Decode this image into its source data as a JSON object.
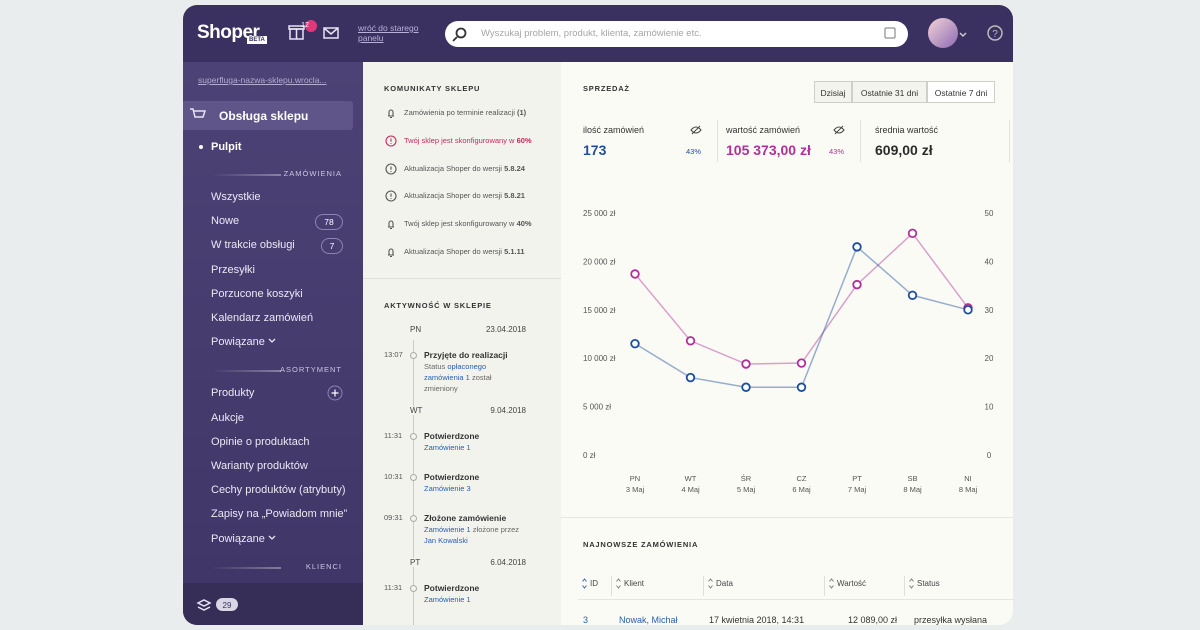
{
  "topbar": {
    "logo": "Shoper",
    "beta": "BETA",
    "gift_badge": 12,
    "old_panel_link": "wróć do starego panelu",
    "search_placeholder": "Wyszukaj problem, produkt, klienta, zamówienie etc."
  },
  "sidebar": {
    "shop_link": "superfluga-nazwa-sklepu.wrocla...",
    "section": "Obsługa sklepu",
    "active": "Pulpit",
    "groups": [
      {
        "title": "ZAMÓWIENIA",
        "items": [
          {
            "label": "Wszystkie"
          },
          {
            "label": "Nowe",
            "badge": 78
          },
          {
            "label": "W trakcie obsługi",
            "badge": 7
          },
          {
            "label": "Przesyłki"
          },
          {
            "label": "Porzucone koszyki"
          },
          {
            "label": "Kalendarz zamówień"
          },
          {
            "label": "Powiązane",
            "expandable": true
          }
        ]
      },
      {
        "title": "ASORTYMENT",
        "items": [
          {
            "label": "Produkty",
            "add_button": true
          },
          {
            "label": "Aukcje"
          },
          {
            "label": "Opinie o produktach"
          },
          {
            "label": "Warianty produktów"
          },
          {
            "label": "Cechy produktów (atrybuty)"
          },
          {
            "label": "Zapisy na „Powiadom mnie”"
          },
          {
            "label": "Powiązane",
            "expandable": true
          }
        ]
      },
      {
        "title": "KLIENCI",
        "items": []
      }
    ],
    "footer_count": 29
  },
  "notices": {
    "title": "KOMUNIKATY SKLEPU",
    "items": [
      {
        "icon": "bell",
        "text": "Zamówienia po terminie realizacji ",
        "bold": "(1)"
      },
      {
        "icon": "alert",
        "text": "Twój sklep jest skonfigurowany w ",
        "bold": "60%"
      },
      {
        "icon": "info",
        "text": "Aktualizacja Shoper do wersji ",
        "bold": "5.8.24"
      },
      {
        "icon": "info",
        "text": "Aktualizacja Shoper do wersji ",
        "bold": "5.8.21"
      },
      {
        "icon": "bell",
        "text": "Twój sklep jest skonfigurowany w ",
        "bold": "40%"
      },
      {
        "icon": "bell",
        "text": "Aktualizacja Shoper do wersji ",
        "bold": "5.1.11"
      }
    ]
  },
  "activity": {
    "title": "AKTYWNOŚĆ W SKLEPIE",
    "days": [
      {
        "day": "PN",
        "date": "23.04.2018",
        "events": [
          {
            "time": "13:07",
            "title": "Przyjęte do realizacji",
            "details": [
              {
                "text": "Status "
              },
              {
                "link": "opłaconego zamówienia 1"
              },
              {
                "text": " został zmieniony"
              }
            ]
          }
        ]
      },
      {
        "day": "WT",
        "date": "9.04.2018",
        "events": [
          {
            "time": "11:31",
            "title": "Potwierdzone",
            "details": [
              {
                "link": "Zamówienie 1"
              }
            ]
          },
          {
            "time": "10:31",
            "title": "Potwierdzone",
            "details": [
              {
                "link": "Zamówienie 3"
              }
            ]
          },
          {
            "time": "09:31",
            "title": "Złożone zamówienie",
            "details": [
              {
                "link": "Zamówienie 1"
              },
              {
                "text": " złożone przez "
              },
              {
                "link": "Jan Kowalski"
              }
            ]
          }
        ]
      },
      {
        "day": "PT",
        "date": "6.04.2018",
        "events": [
          {
            "time": "11:31",
            "title": "Potwierdzone",
            "details": [
              {
                "link": "Zamówienie 1"
              }
            ]
          }
        ]
      }
    ]
  },
  "sales": {
    "title": "SPRZEDAŻ",
    "ranges": [
      "Dzisiaj",
      "Ostatnie 31 dni",
      "Ostatnie 7 dni"
    ],
    "active_range": 2,
    "stats": [
      {
        "label": "ilość zamówień",
        "value": "173",
        "change": "43%",
        "color": "#1f4e9c"
      },
      {
        "label": "wartość zamówień",
        "value": "105 373,00 zł",
        "change": "43%",
        "color": "#b0309a"
      },
      {
        "label": "średnia wartość",
        "value": "609,00 zł",
        "color": "#2b2b2b"
      }
    ],
    "chart": {
      "type": "line",
      "categories": [
        "PN",
        "WT",
        "ŚR",
        "CZ",
        "PT",
        "SB",
        "NI"
      ],
      "dates": [
        "3 Maj",
        "4 Maj",
        "5 Maj",
        "6 Maj",
        "7 Maj",
        "8 Maj",
        "8 Maj"
      ],
      "series": [
        {
          "color": "#b0309a",
          "values": [
            18700,
            11800,
            9400,
            9500,
            17600,
            22900,
            15200
          ]
        },
        {
          "color": "#1d4e9e",
          "axis": "y2",
          "values": [
            23,
            16,
            14,
            14,
            43,
            33,
            30
          ]
        }
      ],
      "ylim": [
        0,
        25000
      ],
      "yticks": [
        {
          "value": 0,
          "label": "0 zł"
        },
        {
          "value": 5000,
          "label": "5 000 zł"
        },
        {
          "value": 10000,
          "label": "10 000 zł"
        },
        {
          "value": 15000,
          "label": "15 000 zł"
        },
        {
          "value": 20000,
          "label": "20 000 zł"
        },
        {
          "value": 25000,
          "label": "25 000 zł"
        }
      ],
      "y2lim": [
        0,
        50
      ],
      "y2ticks": [
        0,
        10,
        20,
        30,
        40,
        50
      ]
    }
  },
  "orders": {
    "title": "NAJNOWSZE ZAMÓWIENIA",
    "columns": [
      "ID",
      "Klient",
      "Data",
      "Wartość",
      "Status"
    ],
    "rows": [
      [
        "3",
        "Nowak, Michał",
        "17 kwietnia 2018, 14:31",
        "12 089,00 zł",
        "przesyłka wysłana"
      ]
    ]
  }
}
